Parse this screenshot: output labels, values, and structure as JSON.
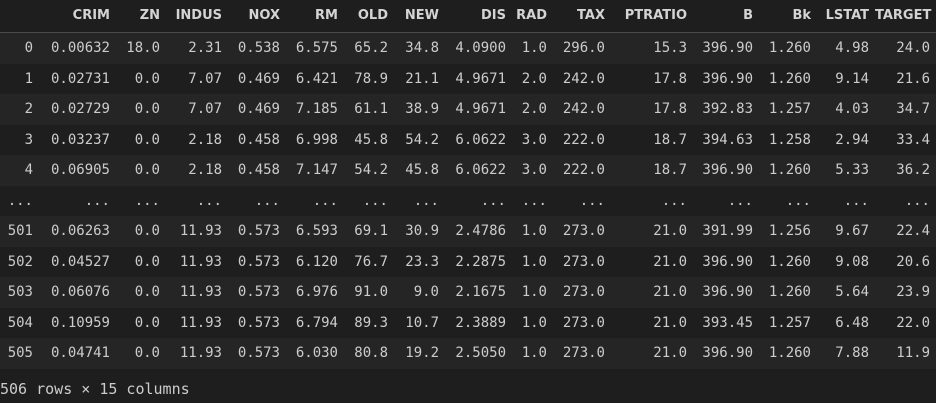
{
  "table": {
    "columns": [
      "",
      "CRIM",
      "ZN",
      "INDUS",
      "NOX",
      "RM",
      "OLD",
      "NEW",
      "DIS",
      "RAD",
      "TAX",
      "PTRATIO",
      "B",
      "Bk",
      "LSTAT",
      "TARGET"
    ],
    "rows": [
      [
        "0",
        "0.00632",
        "18.0",
        "2.31",
        "0.538",
        "6.575",
        "65.2",
        "34.8",
        "4.0900",
        "1.0",
        "296.0",
        "15.3",
        "396.90",
        "1.260",
        "4.98",
        "24.0"
      ],
      [
        "1",
        "0.02731",
        "0.0",
        "7.07",
        "0.469",
        "6.421",
        "78.9",
        "21.1",
        "4.9671",
        "2.0",
        "242.0",
        "17.8",
        "396.90",
        "1.260",
        "9.14",
        "21.6"
      ],
      [
        "2",
        "0.02729",
        "0.0",
        "7.07",
        "0.469",
        "7.185",
        "61.1",
        "38.9",
        "4.9671",
        "2.0",
        "242.0",
        "17.8",
        "392.83",
        "1.257",
        "4.03",
        "34.7"
      ],
      [
        "3",
        "0.03237",
        "0.0",
        "2.18",
        "0.458",
        "6.998",
        "45.8",
        "54.2",
        "6.0622",
        "3.0",
        "222.0",
        "18.7",
        "394.63",
        "1.258",
        "2.94",
        "33.4"
      ],
      [
        "4",
        "0.06905",
        "0.0",
        "2.18",
        "0.458",
        "7.147",
        "54.2",
        "45.8",
        "6.0622",
        "3.0",
        "222.0",
        "18.7",
        "396.90",
        "1.260",
        "5.33",
        "36.2"
      ],
      [
        "...",
        "...",
        "...",
        "...",
        "...",
        "...",
        "...",
        "...",
        "...",
        "...",
        "...",
        "...",
        "...",
        "...",
        "...",
        "..."
      ],
      [
        "501",
        "0.06263",
        "0.0",
        "11.93",
        "0.573",
        "6.593",
        "69.1",
        "30.9",
        "2.4786",
        "1.0",
        "273.0",
        "21.0",
        "391.99",
        "1.256",
        "9.67",
        "22.4"
      ],
      [
        "502",
        "0.04527",
        "0.0",
        "11.93",
        "0.573",
        "6.120",
        "76.7",
        "23.3",
        "2.2875",
        "1.0",
        "273.0",
        "21.0",
        "396.90",
        "1.260",
        "9.08",
        "20.6"
      ],
      [
        "503",
        "0.06076",
        "0.0",
        "11.93",
        "0.573",
        "6.976",
        "91.0",
        "9.0",
        "2.1675",
        "1.0",
        "273.0",
        "21.0",
        "396.90",
        "1.260",
        "5.64",
        "23.9"
      ],
      [
        "504",
        "0.10959",
        "0.0",
        "11.93",
        "0.573",
        "6.794",
        "89.3",
        "10.7",
        "2.3889",
        "1.0",
        "273.0",
        "21.0",
        "393.45",
        "1.257",
        "6.48",
        "22.0"
      ],
      [
        "505",
        "0.04741",
        "0.0",
        "11.93",
        "0.573",
        "6.030",
        "80.8",
        "19.2",
        "2.5050",
        "1.0",
        "273.0",
        "21.0",
        "396.90",
        "1.260",
        "7.88",
        "11.9"
      ]
    ]
  },
  "footer": "506 rows × 15 columns"
}
